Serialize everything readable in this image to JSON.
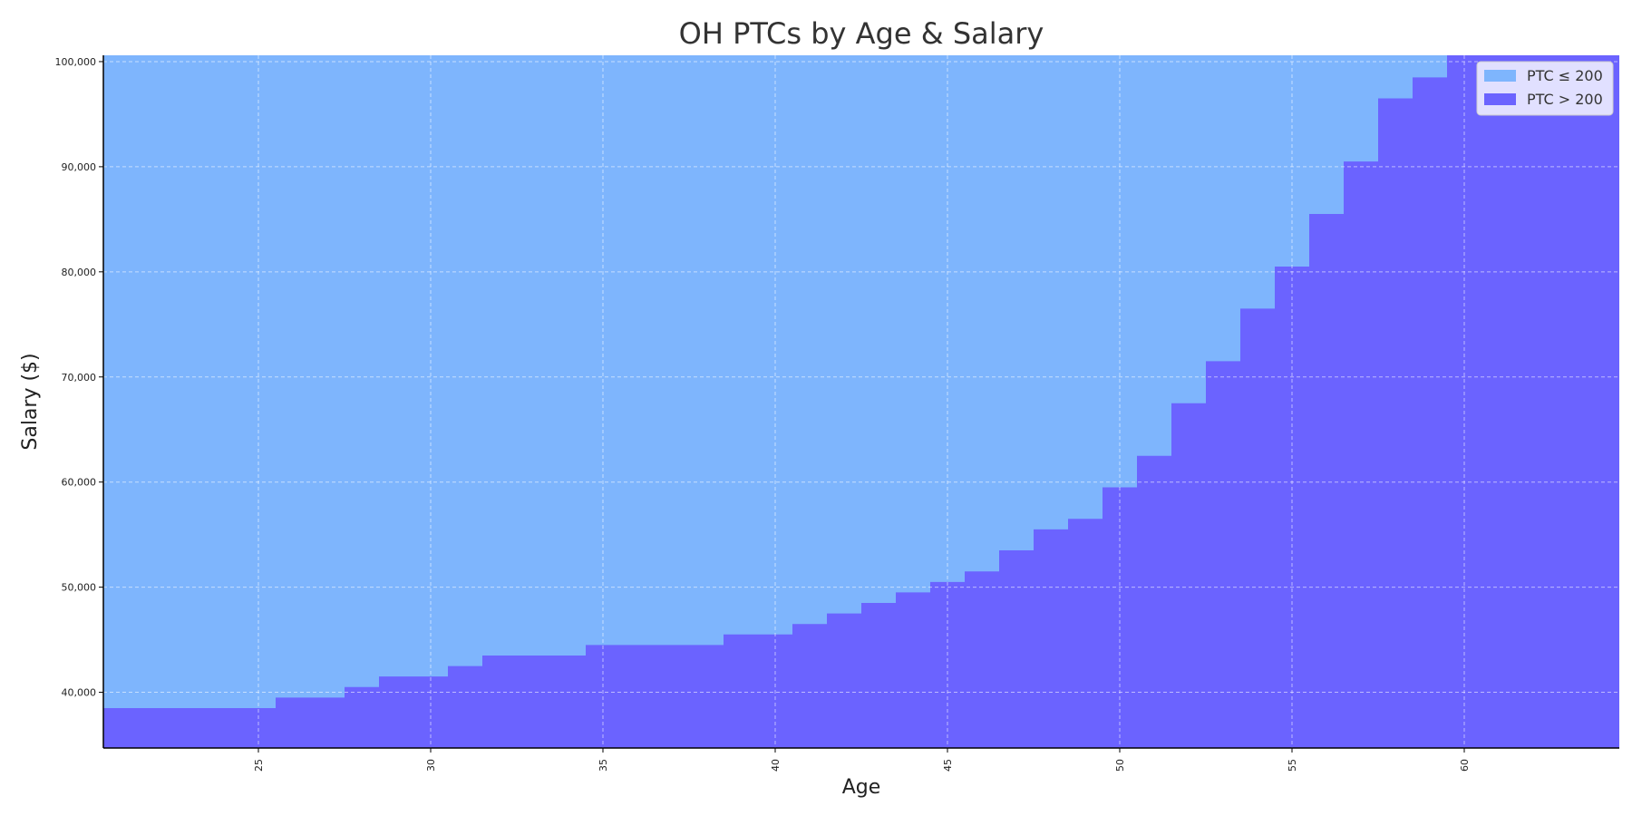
{
  "chart_data": {
    "type": "area",
    "title": "OH PTCs by Age & Salary",
    "xlabel": "Age",
    "ylabel": "Salary ($)",
    "xlim": [
      20.5,
      64.5
    ],
    "ylim": [
      34700,
      100600
    ],
    "x_ticks": [
      25,
      30,
      35,
      40,
      45,
      50,
      55,
      60
    ],
    "y_ticks": [
      40000,
      50000,
      60000,
      70000,
      80000,
      90000,
      100000
    ],
    "y_tick_labels": [
      "40,000",
      "50,000",
      "60,000",
      "70,000",
      "80,000",
      "90,000",
      "100,000"
    ],
    "grid": true,
    "legend_position": "top-right",
    "series": [
      {
        "name": "PTC ≤ 200",
        "color": "#7eb5fd"
      },
      {
        "name": "PTC > 200",
        "color": "#6b63ff"
      }
    ],
    "ages": [
      21,
      22,
      23,
      24,
      25,
      26,
      27,
      28,
      29,
      30,
      31,
      32,
      33,
      34,
      35,
      36,
      37,
      38,
      39,
      40,
      41,
      42,
      43,
      44,
      45,
      46,
      47,
      48,
      49,
      50,
      51,
      52,
      53,
      54,
      55,
      56,
      57,
      58,
      59,
      60,
      61,
      62,
      63,
      64
    ],
    "salary_threshold": [
      38500,
      38500,
      38500,
      38500,
      38500,
      39500,
      39500,
      40500,
      41500,
      41500,
      42500,
      43500,
      43500,
      43500,
      44500,
      44500,
      44500,
      44500,
      45500,
      45500,
      46500,
      47500,
      48500,
      49500,
      50500,
      51500,
      53500,
      55500,
      56500,
      59500,
      62500,
      67500,
      71500,
      76500,
      80500,
      85500,
      90500,
      96500,
      98500,
      100600,
      100600,
      100600,
      100600,
      100600
    ]
  }
}
